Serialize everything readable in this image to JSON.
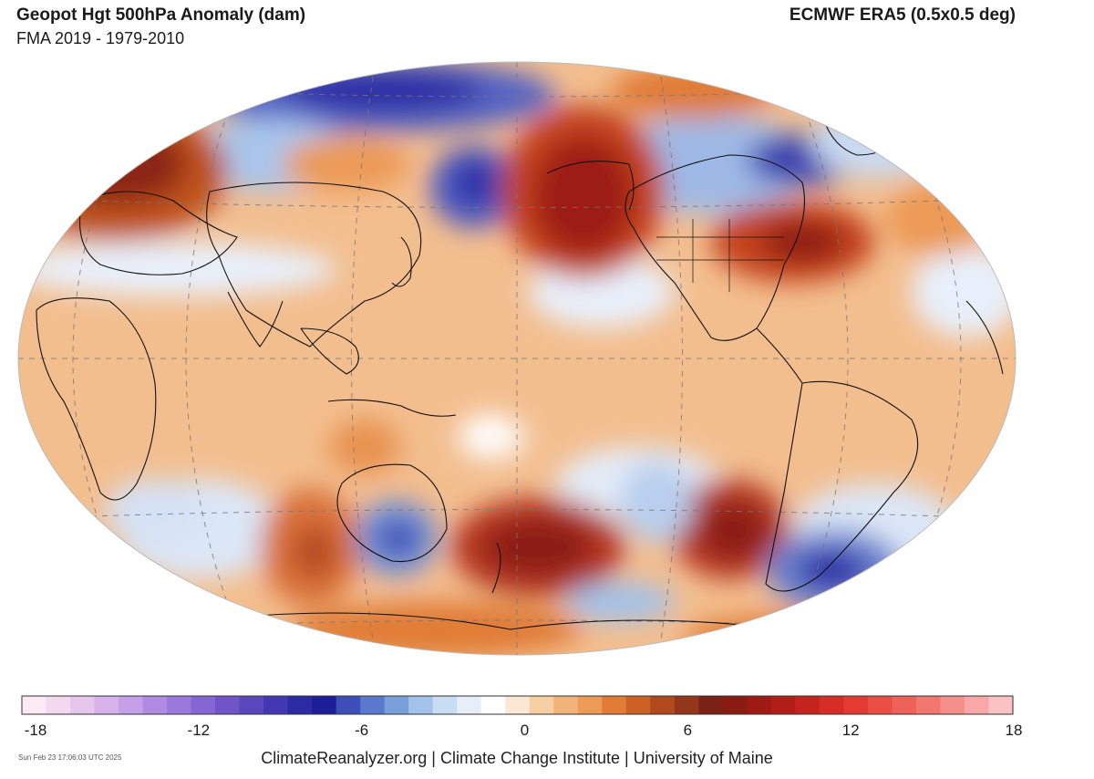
{
  "header": {
    "title": "Geopot Hgt 500hPa Anomaly (dam)",
    "subtitle": "FMA 2019 - 1979-2010",
    "source": "ECMWF ERA5 (0.5x0.5 deg)"
  },
  "colorbar": {
    "min": -18,
    "max": 18,
    "tick_labels": [
      "-18",
      "-12",
      "-6",
      "0",
      "6",
      "12",
      "18"
    ],
    "colors": [
      "#fbe9f3",
      "#f3d8ef",
      "#e6c6ec",
      "#d7b2ea",
      "#c59fe7",
      "#b18be2",
      "#9b78dc",
      "#8566d2",
      "#6f55c7",
      "#5a47bc",
      "#4438b2",
      "#2c2ba3",
      "#1b1e96",
      "#3d4eb8",
      "#5a78cc",
      "#7aa0dc",
      "#a2c2ea",
      "#c8dcf3",
      "#e6eff9",
      "#ffffff",
      "#fbe7d3",
      "#f7cfa5",
      "#f1b379",
      "#ec9a55",
      "#e07c35",
      "#cc6126",
      "#b04a1e",
      "#93361a",
      "#7a2213",
      "#8a1b12",
      "#9e1b15",
      "#b21d18",
      "#c5231d",
      "#d62d24",
      "#e33b31",
      "#e94d43",
      "#ee6159",
      "#f27770",
      "#f58f8a",
      "#f8a8a6",
      "#fbc2c4"
    ]
  },
  "footer": {
    "timestamp": "Sun Feb 23 17:06:03 UTC 2025",
    "credit": "ClimateReanalyzer.org | Climate Change Institute | University of Maine"
  },
  "colors": {
    "background": "#f3be8e",
    "deep_red": "#9c1c14",
    "red": "#c4421f",
    "orange": "#e08a48",
    "light_blue": "#cfe0f4",
    "blue": "#5b72c9",
    "deep_blue": "#2b2f9c",
    "coastline": "#111111",
    "grid": "#777777"
  },
  "map": {
    "projection": "Robinson / elliptical, Pacific-centered",
    "anomaly_features": [
      {
        "name": "Alaska / NE Pacific",
        "sign": "positive",
        "strength": "strong"
      },
      {
        "name": "Eastern United States",
        "sign": "positive",
        "strength": "strong"
      },
      {
        "name": "Northern Europe",
        "sign": "positive",
        "strength": "strong"
      },
      {
        "name": "South Pacific east of New Zealand",
        "sign": "positive",
        "strength": "strong"
      },
      {
        "name": "South Pacific west of South America",
        "sign": "positive",
        "strength": "strong"
      },
      {
        "name": "South Indian Ocean",
        "sign": "positive",
        "strength": "moderate"
      },
      {
        "name": "Arctic / Siberia",
        "sign": "negative",
        "strength": "strong"
      },
      {
        "name": "Kamchatka / NW Pacific",
        "sign": "negative",
        "strength": "strong"
      },
      {
        "name": "Northern Canada / Greenland",
        "sign": "negative",
        "strength": "strong"
      },
      {
        "name": "Southern Ocean south of Australia",
        "sign": "negative",
        "strength": "moderate"
      },
      {
        "name": "South Atlantic",
        "sign": "negative",
        "strength": "strong"
      },
      {
        "name": "Ross Sea area",
        "sign": "negative",
        "strength": "weak"
      }
    ]
  }
}
